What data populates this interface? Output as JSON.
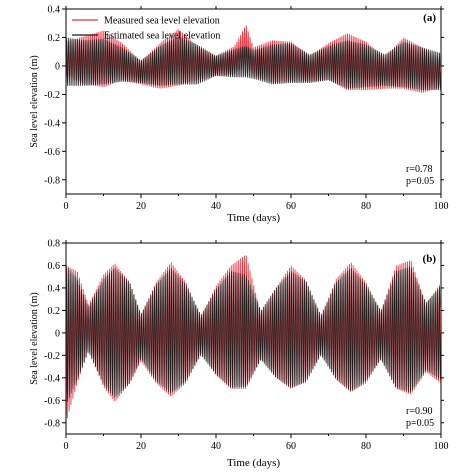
{
  "legend": {
    "items": [
      {
        "label": "Measured sea level elevation",
        "color": "#e8313b"
      },
      {
        "label": "Estimated sea level elevation",
        "color": "#1a1a1a"
      }
    ]
  },
  "chart_data": [
    {
      "type": "line",
      "panel_label": "(a)",
      "xlabel": "Time (days)",
      "ylabel": "Sea level elevation (m)",
      "xlim": [
        0,
        100
      ],
      "ylim": [
        -0.9,
        0.4
      ],
      "x_ticks": [
        0,
        20,
        40,
        60,
        80,
        100
      ],
      "y_ticks": [
        0.4,
        0.2,
        0,
        -0.2,
        -0.4,
        -0.6,
        -0.8
      ],
      "y_tick_labels": [
        "0.4",
        "0.2",
        "0",
        "-0.2",
        "-0.4",
        "-0.6",
        "-0.8"
      ],
      "legend_position": "top-left",
      "annotations": [
        "r=0.78",
        "p=0.05"
      ],
      "series": [
        {
          "name": "Measured sea level elevation",
          "color": "#e8313b",
          "x": [
            0,
            5,
            10,
            15,
            20,
            25,
            30,
            35,
            40,
            45,
            48,
            50,
            55,
            60,
            65,
            70,
            75,
            80,
            85,
            90,
            95,
            100
          ],
          "amplitude": [
            0.12,
            0.17,
            0.2,
            0.13,
            0.08,
            0.16,
            0.2,
            0.12,
            0.07,
            0.1,
            0.14,
            0.1,
            0.15,
            0.14,
            0.09,
            0.13,
            0.2,
            0.17,
            0.11,
            0.18,
            0.16,
            0.1
          ],
          "mean": [
            0.05,
            0.04,
            0.05,
            0.03,
            -0.05,
            0.0,
            0.06,
            0.02,
            0.0,
            0.04,
            0.15,
            0.03,
            0.03,
            0.03,
            -0.02,
            0.03,
            0.03,
            0.0,
            -0.05,
            0.02,
            -0.03,
            -0.05
          ]
        },
        {
          "name": "Estimated sea level elevation",
          "color": "#1a1a1a",
          "x": [
            0,
            5,
            10,
            15,
            20,
            25,
            30,
            35,
            40,
            45,
            48,
            50,
            55,
            60,
            65,
            70,
            75,
            80,
            85,
            90,
            95,
            100
          ],
          "amplitude": [
            0.17,
            0.16,
            0.16,
            0.12,
            0.08,
            0.14,
            0.17,
            0.14,
            0.07,
            0.1,
            0.11,
            0.1,
            0.14,
            0.14,
            0.1,
            0.12,
            0.17,
            0.15,
            0.11,
            0.16,
            0.15,
            0.13
          ],
          "mean": [
            0.03,
            0.02,
            0.03,
            0.01,
            -0.04,
            0.0,
            0.04,
            0.01,
            0.0,
            0.02,
            0.03,
            0.01,
            0.01,
            0.02,
            -0.02,
            0.02,
            0.01,
            0.0,
            -0.03,
            0.01,
            -0.02,
            -0.04
          ]
        }
      ]
    },
    {
      "type": "line",
      "panel_label": "(b)",
      "xlabel": "Time (days)",
      "ylabel": "Sea level elevation (m)",
      "xlim": [
        0,
        100
      ],
      "ylim": [
        -0.9,
        0.8
      ],
      "x_ticks": [
        0,
        20,
        40,
        60,
        80,
        100
      ],
      "y_ticks": [
        0.8,
        0.6,
        0.4,
        0.2,
        0,
        -0.2,
        -0.4,
        -0.6,
        -0.8
      ],
      "y_tick_labels": [
        "0.8",
        "0.6",
        "0.4",
        "0.2",
        "0",
        "-0.2",
        "-0.4",
        "-0.6",
        "-0.8"
      ],
      "annotations": [
        "r=0.90",
        "p=0.05"
      ],
      "series": [
        {
          "name": "Measured sea level elevation",
          "color": "#e8313b",
          "x": [
            0,
            3,
            6,
            10,
            13,
            17,
            20,
            24,
            28,
            32,
            36,
            40,
            44,
            48,
            52,
            56,
            60,
            64,
            68,
            72,
            76,
            80,
            84,
            88,
            92,
            96,
            100
          ],
          "amplitude": [
            0.7,
            0.5,
            0.2,
            0.5,
            0.62,
            0.45,
            0.2,
            0.45,
            0.6,
            0.45,
            0.15,
            0.4,
            0.55,
            0.6,
            0.2,
            0.4,
            0.55,
            0.45,
            0.15,
            0.45,
            0.58,
            0.45,
            0.2,
            0.55,
            0.6,
            0.3,
            0.45
          ],
          "mean": [
            -0.1,
            0.05,
            0.05,
            0.02,
            0.0,
            0.0,
            -0.05,
            0.0,
            0.03,
            0.0,
            -0.02,
            0.02,
            0.05,
            0.1,
            -0.03,
            0.0,
            0.05,
            0.02,
            -0.03,
            0.03,
            0.05,
            0.0,
            -0.02,
            0.05,
            0.05,
            -0.05,
            0.0
          ]
        },
        {
          "name": "Estimated sea level elevation",
          "color": "#1a1a1a",
          "x": [
            0,
            3,
            6,
            10,
            13,
            17,
            20,
            24,
            28,
            32,
            36,
            40,
            44,
            48,
            52,
            56,
            60,
            64,
            68,
            72,
            76,
            80,
            84,
            88,
            92,
            96,
            100
          ],
          "amplitude": [
            0.62,
            0.45,
            0.2,
            0.47,
            0.58,
            0.45,
            0.2,
            0.43,
            0.56,
            0.43,
            0.18,
            0.38,
            0.52,
            0.5,
            0.22,
            0.4,
            0.52,
            0.45,
            0.18,
            0.43,
            0.55,
            0.43,
            0.22,
            0.52,
            0.56,
            0.3,
            0.42
          ],
          "mean": [
            -0.02,
            0.03,
            0.03,
            0.01,
            0.0,
            0.0,
            -0.03,
            0.0,
            0.02,
            0.0,
            -0.02,
            0.01,
            0.03,
            0.02,
            -0.02,
            0.0,
            0.03,
            0.01,
            -0.02,
            0.02,
            0.03,
            0.0,
            -0.02,
            0.03,
            0.03,
            -0.03,
            0.0
          ]
        }
      ]
    }
  ]
}
